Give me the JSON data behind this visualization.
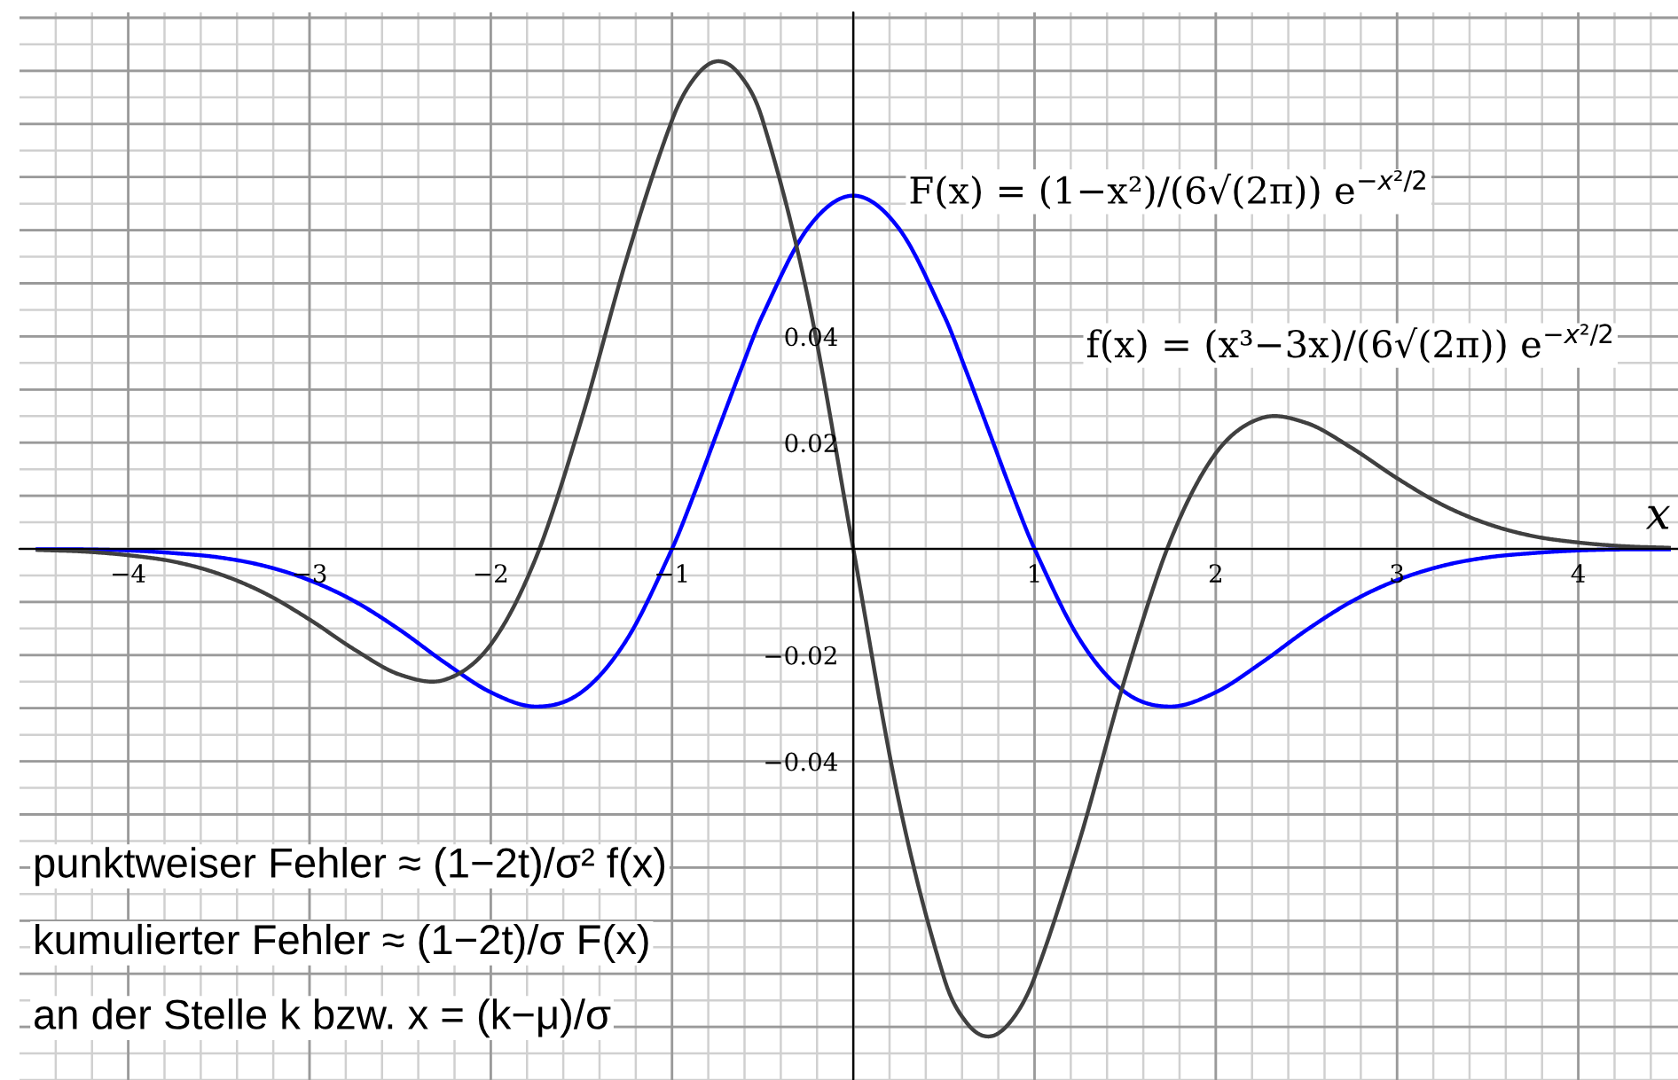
{
  "chart_data": {
    "type": "line",
    "xlabel": "x",
    "x": [
      -4.5,
      -4.25,
      -4,
      -3.75,
      -3.5,
      -3.25,
      -3,
      -2.75,
      -2.5,
      -2.25,
      -2,
      -1.75,
      -1.5,
      -1.25,
      -1,
      -0.875,
      -0.75,
      -0.625,
      -0.5,
      -0.25,
      0,
      0.25,
      0.5,
      0.625,
      0.75,
      0.875,
      1,
      1.25,
      1.5,
      1.75,
      2,
      2.25,
      2.5,
      2.75,
      3,
      3.25,
      3.5,
      3.75,
      4,
      4.25,
      4.5
    ],
    "series": [
      {
        "color": "#0000ff",
        "values": [
          -0.0001,
          -0.0001,
          -0.0003,
          -0.0008,
          -0.0016,
          -0.0032,
          -0.0059,
          -0.0099,
          -0.0153,
          -0.0215,
          -0.027,
          -0.0297,
          -0.027,
          -0.0171,
          0,
          0.0106,
          0.022,
          0.0333,
          0.044,
          0.0604,
          0.0665,
          0.0604,
          0.044,
          0.0333,
          0.022,
          0.0106,
          0,
          -0.0171,
          -0.027,
          -0.0297,
          -0.027,
          -0.0215,
          -0.0153,
          -0.0099,
          -0.0059,
          -0.0032,
          -0.0016,
          -0.0008,
          -0.0003,
          -0.0001,
          -0.0001
        ]
      },
      {
        "color": "#404040",
        "values": [
          -0.0002,
          -0.0005,
          -0.0012,
          -0.0024,
          -0.0047,
          -0.0083,
          -0.0133,
          -0.019,
          -0.0237,
          -0.0246,
          -0.018,
          -0.0016,
          0.0243,
          0.0547,
          0.0807,
          0.0887,
          0.0918,
          0.0892,
          0.0807,
          0.0473,
          0,
          -0.0473,
          -0.0807,
          -0.0892,
          -0.0918,
          -0.0887,
          -0.0807,
          -0.0547,
          -0.0243,
          0.0016,
          0.018,
          0.0246,
          0.0237,
          0.019,
          0.0133,
          0.0083,
          0.0047,
          0.0024,
          0.0012,
          0.0005,
          0.0002
        ]
      }
    ],
    "xlim": [
      -4.6,
      4.55
    ],
    "ylim": [
      -0.1,
      0.101
    ],
    "xticks": [
      {
        "value": -4,
        "label": "−4"
      },
      {
        "value": -3,
        "label": "−3"
      },
      {
        "value": -2,
        "label": "−2"
      },
      {
        "value": -1,
        "label": "−1"
      },
      {
        "value": 0,
        "label": null
      },
      1,
      2,
      3,
      4
    ],
    "yticks": [
      {
        "value": -0.09,
        "label": null
      },
      {
        "value": -0.08,
        "label": null
      },
      {
        "value": -0.07,
        "label": null
      },
      {
        "value": -0.06,
        "label": null
      },
      {
        "value": -0.05,
        "label": null
      },
      {
        "value": -0.04,
        "label": "−0.04"
      },
      {
        "value": -0.03,
        "label": null
      },
      {
        "value": -0.02,
        "label": "−0.02"
      },
      {
        "value": -0.01,
        "label": null
      },
      {
        "value": 0,
        "label": null
      },
      {
        "value": 0.01,
        "label": null
      },
      0.02,
      {
        "value": 0.03,
        "label": null
      },
      0.04,
      {
        "value": 0.05,
        "label": null
      },
      {
        "value": 0.06,
        "label": null
      },
      {
        "value": 0.07,
        "label": null
      },
      {
        "value": 0.08,
        "label": null
      },
      {
        "value": 0.09,
        "label": null
      },
      {
        "value": 0.1,
        "label": null
      }
    ],
    "grid": true,
    "legend": false,
    "marker": "none",
    "line_style": "solid",
    "annotations": [
      "F(x) = (1−x²)/(6√(2π)) e$^{−x²/2}$",
      "f(x) = (x³−3x)/(6√(2π)) e$^{−x²/2}$",
      "punktweiser Fehler ≈ (1−2t)/σ² f(x)",
      "kumulierter Fehler ≈ (1−2t)/σ F(x)",
      "an der Stelle k bzw. x = (k−μ)/σ"
    ]
  }
}
